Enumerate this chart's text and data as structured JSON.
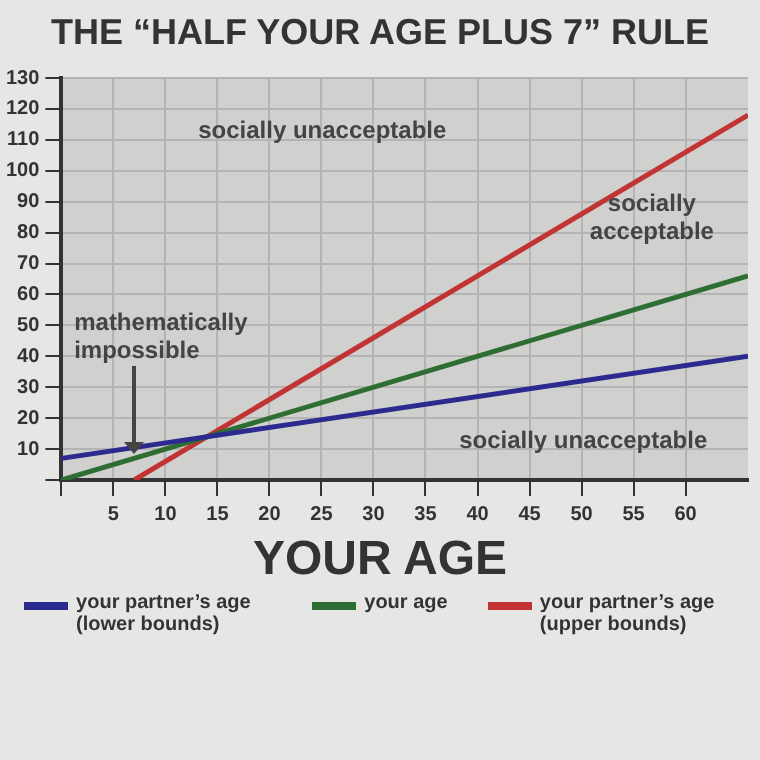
{
  "chart_data": {
    "type": "line",
    "title": "THE “HALF YOUR AGE PLUS 7” RULE",
    "xlabel": "YOUR AGE",
    "xlim": [
      0,
      66
    ],
    "xticks": [
      {
        "value": 0,
        "label": null
      },
      5,
      10,
      15,
      20,
      25,
      30,
      35,
      40,
      45,
      50,
      55,
      60
    ],
    "ylim": [
      0,
      130
    ],
    "yticks": [
      {
        "value": 0,
        "label": null
      },
      10,
      20,
      30,
      40,
      50,
      60,
      70,
      80,
      90,
      100,
      110,
      120,
      130
    ],
    "series": [
      {
        "name": "your partner’s age (lower bounds)",
        "color": "#2b2b8f",
        "x": [
          0,
          66
        ],
        "values": [
          7,
          40
        ]
      },
      {
        "name": "your age",
        "color": "#2f6e33",
        "x": [
          0,
          66
        ],
        "values": [
          0,
          66
        ]
      },
      {
        "name": "your partner’s age (upper bounds)",
        "color": "#c23434",
        "x": [
          7,
          66
        ],
        "values": [
          0,
          118
        ]
      }
    ],
    "annotations": [
      "socially unacceptable",
      "socially acceptable",
      "socially unacceptable",
      {
        "text": "mathematically impossible",
        "x": 7,
        "y": 7
      }
    ],
    "grid": true,
    "legend": "bottom",
    "marker": "none",
    "line_style": "solid"
  }
}
